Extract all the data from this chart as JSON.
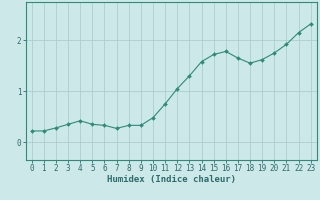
{
  "x": [
    0,
    1,
    2,
    3,
    4,
    5,
    6,
    7,
    8,
    9,
    10,
    11,
    12,
    13,
    14,
    15,
    16,
    17,
    18,
    19,
    20,
    21,
    22,
    23
  ],
  "y": [
    0.22,
    0.22,
    0.28,
    0.35,
    0.42,
    0.35,
    0.33,
    0.27,
    0.33,
    0.33,
    0.48,
    0.75,
    1.05,
    1.3,
    1.58,
    1.72,
    1.78,
    1.65,
    1.55,
    1.62,
    1.75,
    1.92,
    2.15,
    2.32
  ],
  "line_color": "#2e8b7a",
  "marker": "D",
  "marker_size": 2.0,
  "bg_color": "#cce8e8",
  "grid_color": "#aacece",
  "axis_color": "#2e8b7a",
  "tick_color": "#2e6b6b",
  "xlabel": "Humidex (Indice chaleur)",
  "ylabel": "",
  "xlim": [
    -0.5,
    23.5
  ],
  "ylim": [
    -0.35,
    2.75
  ],
  "yticks": [
    0,
    1,
    2
  ],
  "xticks": [
    0,
    1,
    2,
    3,
    4,
    5,
    6,
    7,
    8,
    9,
    10,
    11,
    12,
    13,
    14,
    15,
    16,
    17,
    18,
    19,
    20,
    21,
    22,
    23
  ],
  "label_fontsize": 6.5,
  "tick_fontsize": 5.5
}
